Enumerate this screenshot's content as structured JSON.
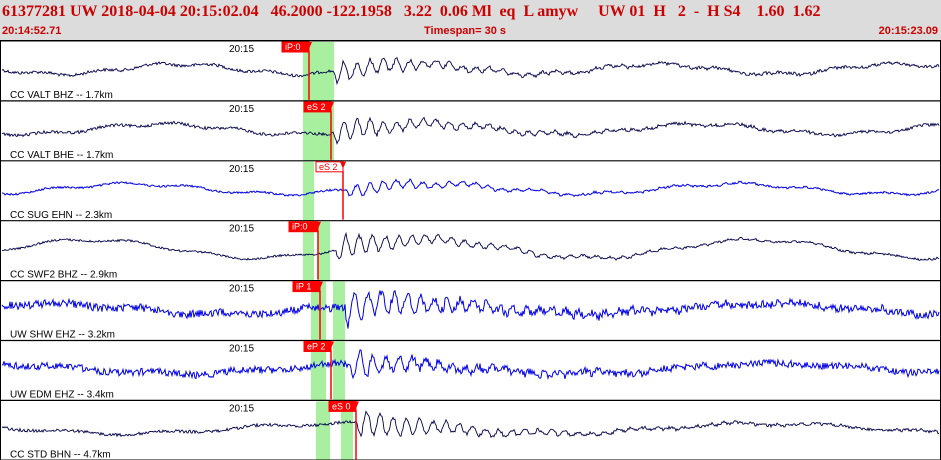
{
  "header": {
    "title": "61377281 UW 2018-04-04 20:15:02.04   46.2000 -122.1958   3.22  0.06 Ml  eq  L amyw     UW 01  H   2  -  H S4    1.60  1.62",
    "start_time": "20:14:52.71",
    "timespan": "Timespan=  30 s",
    "end_time": "20:15:23.09"
  },
  "colors": {
    "header_bg": "#dcdcdc",
    "header_text": "#cc0000",
    "trace_dark": "#00004a",
    "trace_blue": "#0000e6",
    "pick": "#ff0000",
    "window": "#a8f0a0"
  },
  "time_label": "20:15",
  "channels": [
    {
      "label": "CC VALT BHZ -- 1.7km",
      "pick": "iP:0",
      "color": "dark"
    },
    {
      "label": "CC VALT BHE -- 1.7km",
      "pick": "eS 2",
      "color": "dark"
    },
    {
      "label": "CC SUG EHN -- 2.3km",
      "pick": "eS 2",
      "color": "blue"
    },
    {
      "label": "CC SWF2 BHZ -- 2.9km",
      "pick": "iP:0",
      "color": "dark"
    },
    {
      "label": "UW SHW EHZ -- 3.2km",
      "pick": "iP 1",
      "color": "blue"
    },
    {
      "label": "UW EDM EHZ -- 3.4km",
      "pick": "eP 2",
      "color": "blue"
    },
    {
      "label": "CC STD BHN -- 4.7km",
      "pick": "eS 0",
      "color": "dark"
    }
  ]
}
